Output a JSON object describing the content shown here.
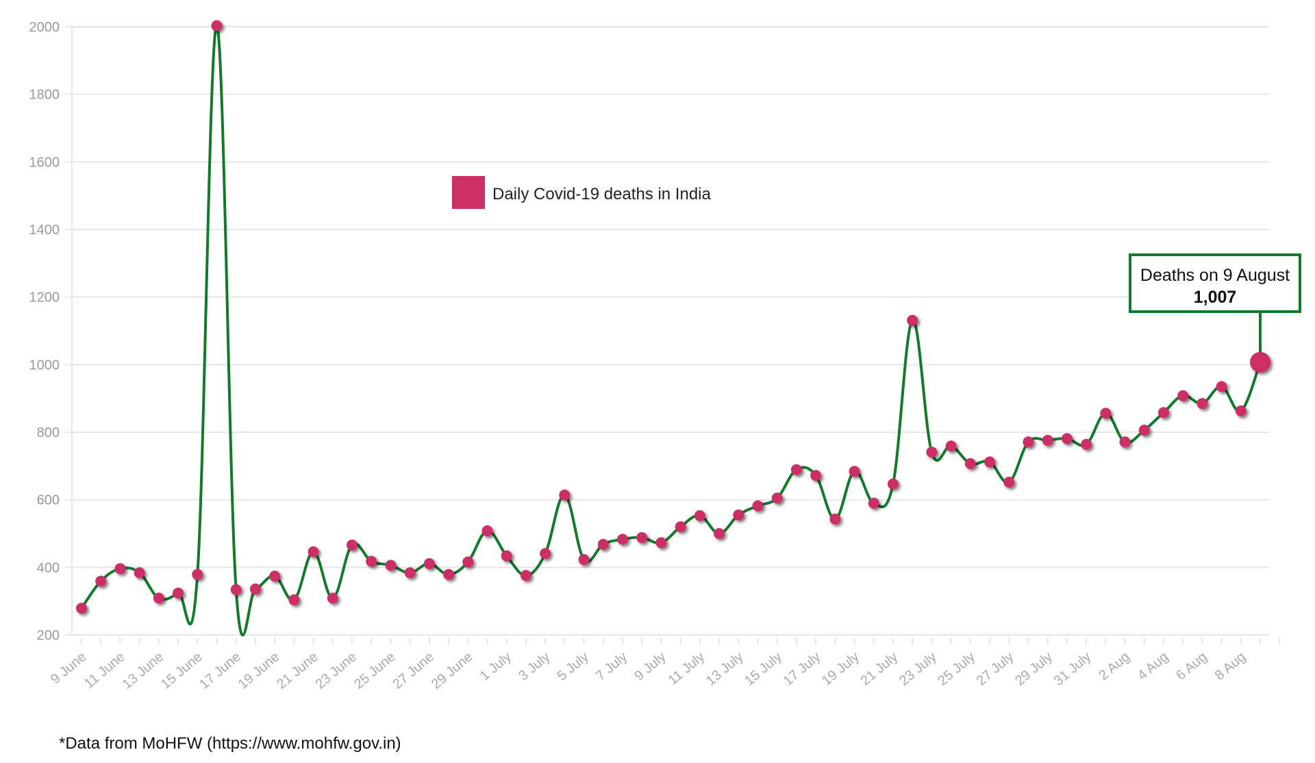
{
  "chart_data": {
    "type": "line",
    "title": "",
    "xlabel": "",
    "ylabel": "",
    "ylim": [
      200,
      2000
    ],
    "yticks": [
      200,
      400,
      600,
      800,
      1000,
      1200,
      1400,
      1600,
      1800,
      2000
    ],
    "grid": true,
    "legend": {
      "label": "Daily Covid-19 deaths in India",
      "placement": "top-center",
      "color": "#cc2f66"
    },
    "line_color": "#137a2b",
    "marker_color": "#cc2f66",
    "x": [
      "9 June",
      "10 June",
      "11 June",
      "12 June",
      "13 June",
      "14 June",
      "15 June",
      "16 June",
      "17 June",
      "18 June",
      "19 June",
      "20 June",
      "21 June",
      "22 June",
      "23 June",
      "24 June",
      "25 June",
      "26 June",
      "27 June",
      "28 June",
      "29 June",
      "30 June",
      "1 July",
      "2 July",
      "3 July",
      "4 July",
      "5 July",
      "6 July",
      "7 July",
      "8 July",
      "9 July",
      "10 July",
      "11 July",
      "12 July",
      "13 July",
      "14 July",
      "15 July",
      "16 July",
      "17 July",
      "18 July",
      "19 July",
      "20 July",
      "21 July",
      "22 July",
      "23 July",
      "24 July",
      "25 July",
      "26 July",
      "27 July",
      "28 July",
      "29 July",
      "30 July",
      "31 July",
      "1 Aug",
      "2 Aug",
      "3 Aug",
      "4 Aug",
      "5 Aug",
      "6 Aug",
      "7 Aug",
      "8 Aug",
      "9 Aug"
    ],
    "tick_labels": [
      "9 June",
      "11 June",
      "13 June",
      "15 June",
      "17 June",
      "19 June",
      "21 June",
      "23 June",
      "25 June",
      "27 June",
      "29 June",
      "1 July",
      "3 July",
      "5 July",
      "7 July",
      "9 July",
      "11 July",
      "13 July",
      "15 July",
      "17 July",
      "19 July",
      "21 July",
      "23 July",
      "25 July",
      "27 July",
      "29 July",
      "31 July",
      "2 Aug",
      "4 Aug",
      "6 Aug",
      "8 Aug"
    ],
    "series": [
      {
        "name": "Daily Covid-19 deaths in India",
        "values": [
          279,
          359,
          396,
          384,
          309,
          324,
          379,
          2003,
          334,
          336,
          374,
          304,
          446,
          309,
          466,
          418,
          406,
          384,
          411,
          379,
          416,
          508,
          434,
          376,
          441,
          614,
          423,
          468,
          483,
          488,
          473,
          520,
          553,
          500,
          555,
          582,
          605,
          689,
          672,
          543,
          684,
          590,
          647,
          1131,
          741,
          759,
          707,
          712,
          652,
          771,
          776,
          781,
          764,
          856,
          771,
          806,
          858,
          908,
          885,
          935,
          863,
          1007
        ]
      }
    ],
    "annotation": {
      "title": "Deaths on 9 August",
      "value": "1,007",
      "target": "9 Aug"
    }
  },
  "footnote": "*Data from MoHFW (https://www.mohfw.gov.in)"
}
